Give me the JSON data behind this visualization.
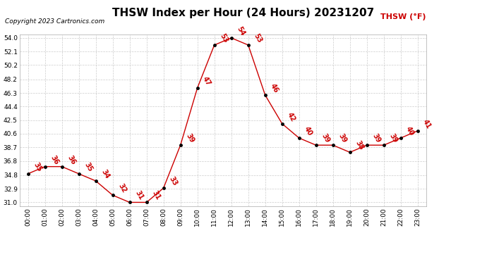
{
  "title": "THSW Index per Hour (24 Hours) 20231207",
  "copyright": "Copyright 2023 Cartronics.com",
  "legend_label": "THSW (°F)",
  "hours": [
    0,
    1,
    2,
    3,
    4,
    5,
    6,
    7,
    8,
    9,
    10,
    11,
    12,
    13,
    14,
    15,
    16,
    17,
    18,
    19,
    20,
    21,
    22,
    23
  ],
  "values": [
    35,
    36,
    36,
    35,
    34,
    32,
    31,
    31,
    33,
    39,
    47,
    53,
    54,
    53,
    46,
    42,
    40,
    39,
    39,
    38,
    39,
    39,
    40,
    41
  ],
  "x_labels": [
    "00:00",
    "01:00",
    "02:00",
    "03:00",
    "04:00",
    "05:00",
    "06:00",
    "07:00",
    "08:00",
    "09:00",
    "10:00",
    "11:00",
    "12:00",
    "13:00",
    "14:00",
    "15:00",
    "16:00",
    "17:00",
    "18:00",
    "19:00",
    "20:00",
    "21:00",
    "22:00",
    "23:00"
  ],
  "y_ticks": [
    31.0,
    32.9,
    34.8,
    36.8,
    38.7,
    40.6,
    42.5,
    44.4,
    46.3,
    48.2,
    50.2,
    52.1,
    54.0
  ],
  "ylim": [
    30.5,
    54.5
  ],
  "line_color": "#cc0000",
  "marker_color": "#000000",
  "bg_color": "#ffffff",
  "grid_color": "#cccccc",
  "title_fontsize": 11,
  "label_fontsize": 6.5,
  "annotation_fontsize": 7,
  "copyright_fontsize": 6.5
}
